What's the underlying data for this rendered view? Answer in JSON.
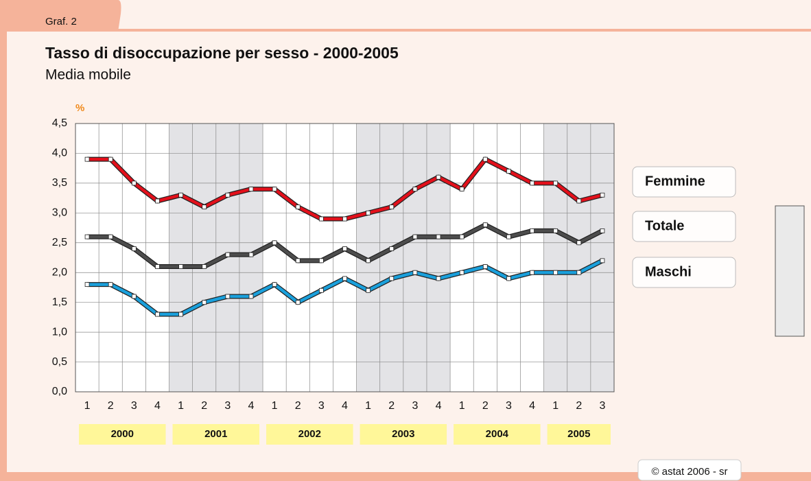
{
  "tab": "Graf. 2",
  "chart_data": {
    "type": "line",
    "title": "Tasso di disoccupazione per sesso - 2000-2005",
    "subtitle": "Media mobile",
    "y_unit": "%",
    "categories": [
      "1",
      "2",
      "3",
      "4",
      "1",
      "2",
      "3",
      "4",
      "1",
      "2",
      "3",
      "4",
      "1",
      "2",
      "3",
      "4",
      "1",
      "2",
      "3",
      "4",
      "1",
      "2",
      "3"
    ],
    "years": [
      "2000",
      "2001",
      "2002",
      "2003",
      "2004",
      "2005"
    ],
    "series": [
      {
        "name": "Femmine",
        "color": "#e3101b",
        "values": [
          3.9,
          3.9,
          3.5,
          3.2,
          3.3,
          3.1,
          3.3,
          3.4,
          3.4,
          3.1,
          2.9,
          2.9,
          3.0,
          3.1,
          3.4,
          3.6,
          3.4,
          3.9,
          3.7,
          3.5,
          3.5,
          3.2,
          3.3
        ]
      },
      {
        "name": "Totale",
        "color": "#4d4d4d",
        "values": [
          2.6,
          2.6,
          2.4,
          2.1,
          2.1,
          2.1,
          2.3,
          2.3,
          2.5,
          2.2,
          2.2,
          2.4,
          2.2,
          2.4,
          2.6,
          2.6,
          2.6,
          2.8,
          2.6,
          2.7,
          2.7,
          2.5,
          2.7
        ]
      },
      {
        "name": "Maschi",
        "color": "#1aa0dc",
        "values": [
          1.8,
          1.8,
          1.6,
          1.3,
          1.3,
          1.5,
          1.6,
          1.6,
          1.8,
          1.5,
          1.7,
          1.9,
          1.7,
          1.9,
          2.0,
          1.9,
          2.0,
          2.1,
          1.9,
          2.0,
          2.0,
          2.0,
          2.2
        ]
      }
    ],
    "ylim": [
      0,
      4.5
    ],
    "yticks": [
      {
        "value": 0,
        "label": "0,0"
      },
      {
        "value": 0.5,
        "label": "0,5"
      },
      {
        "value": 1,
        "label": "1,0"
      },
      {
        "value": 1.5,
        "label": "1,5"
      },
      {
        "value": 2,
        "label": "2,0"
      },
      {
        "value": 2.5,
        "label": "2,5"
      },
      {
        "value": 3,
        "label": "3,0"
      },
      {
        "value": 3.5,
        "label": "3,5"
      },
      {
        "value": 4,
        "label": "4,0"
      },
      {
        "value": 4.5,
        "label": "4,5"
      }
    ],
    "grid": true
  },
  "footer": "© astat 2006 - sr"
}
